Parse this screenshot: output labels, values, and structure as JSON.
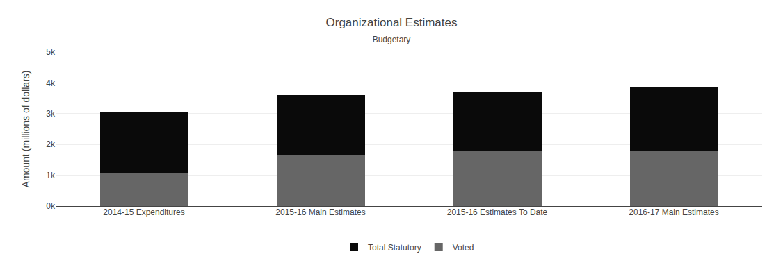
{
  "chart_data": {
    "type": "bar",
    "stacked": true,
    "title": "Organizational Estimates",
    "subtitle": "Budgetary",
    "ylabel": "Amount (millions of dollars)",
    "categories": [
      "2014-15 Expenditures",
      "2015-16 Main Estimates",
      "2015-16 Estimates To Date",
      "2016-17 Main Estimates"
    ],
    "series": [
      {
        "name": "Voted",
        "color": "#666666",
        "values": [
          1090,
          1670,
          1780,
          1800
        ]
      },
      {
        "name": "Total Statutory",
        "color": "#0a0a0a",
        "values": [
          1960,
          1930,
          1940,
          2050
        ]
      }
    ],
    "ylim": [
      0,
      5000
    ],
    "yticks": [
      {
        "value": 0,
        "label": "0k"
      },
      {
        "value": 1000,
        "label": "1k"
      },
      {
        "value": 2000,
        "label": "2k"
      },
      {
        "value": 3000,
        "label": "3k"
      },
      {
        "value": 4000,
        "label": "4k"
      },
      {
        "value": 5000,
        "label": "5k"
      }
    ],
    "grid": true,
    "legend": "bottom"
  }
}
